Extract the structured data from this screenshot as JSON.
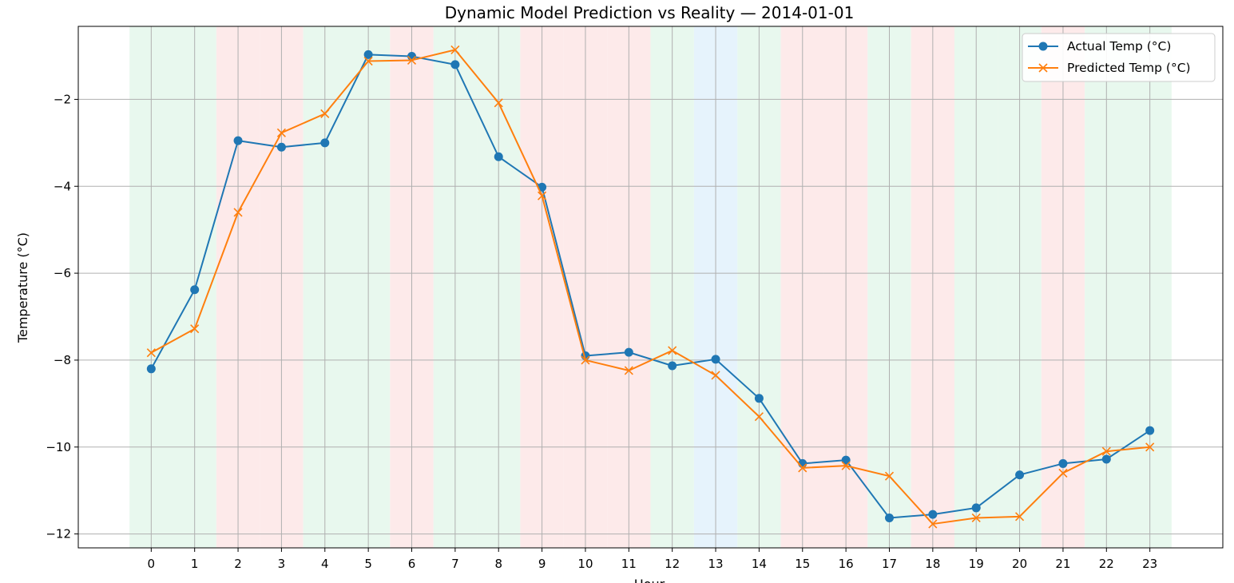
{
  "chart_data": {
    "type": "line",
    "title": "Dynamic Model Prediction vs Reality — 2014-01-01",
    "xlabel": "Hour",
    "ylabel": "Temperature (°C)",
    "x": [
      0,
      1,
      2,
      3,
      4,
      5,
      6,
      7,
      8,
      9,
      10,
      11,
      12,
      13,
      14,
      15,
      16,
      17,
      18,
      19,
      20,
      21,
      22,
      23
    ],
    "xlim": [
      -1.68,
      24.68
    ],
    "ylim": [
      -12.32,
      -0.32
    ],
    "yticks": [
      -12,
      -10,
      -8,
      -6,
      -4,
      -2
    ],
    "yticklabels": [
      "−12",
      "−10",
      "−8",
      "−6",
      "−4",
      "−2"
    ],
    "grid": true,
    "legend_position": "top-right",
    "series": [
      {
        "name": "Actual Temp (°C)",
        "color": "#1f77b4",
        "marker": "circle",
        "values": [
          -8.2,
          -6.38,
          -2.95,
          -3.1,
          -3.0,
          -0.97,
          -1.01,
          -1.2,
          -3.32,
          -4.02,
          -7.9,
          -7.82,
          -8.13,
          -7.98,
          -8.88,
          -10.38,
          -10.3,
          -11.63,
          -11.55,
          -11.4,
          -10.64,
          -10.38,
          -10.28,
          -9.62
        ]
      },
      {
        "name": "Predicted Temp (°C)",
        "color": "#ff7f0e",
        "marker": "x",
        "values": [
          -7.83,
          -7.28,
          -4.6,
          -2.77,
          -2.33,
          -1.12,
          -1.1,
          -0.86,
          -2.08,
          -4.22,
          -8.0,
          -8.24,
          -7.78,
          -8.35,
          -9.3,
          -10.48,
          -10.43,
          -10.67,
          -11.77,
          -11.63,
          -11.6,
          -10.6,
          -10.1,
          -10.0
        ]
      }
    ],
    "background_bands": {
      "colors": {
        "green": "#e8f8ee",
        "red": "#fdeaea",
        "blue": "#e6f3fc"
      },
      "sequence": [
        "green",
        "green",
        "red",
        "red",
        "green",
        "green",
        "red",
        "green",
        "green",
        "red",
        "red",
        "red",
        "green",
        "blue",
        "green",
        "red",
        "red",
        "green",
        "red",
        "green",
        "green",
        "red",
        "green",
        "green"
      ]
    }
  }
}
